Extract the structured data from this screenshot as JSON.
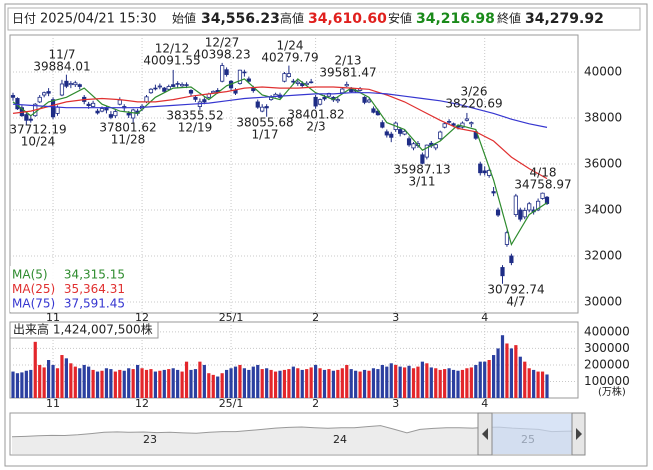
{
  "chart_data": {
    "type": "candlestick",
    "header": {
      "date_label": "日付",
      "date": "2025/04/21 15:30",
      "open_label": "始値",
      "open": "34,556.23",
      "high_label": "高値",
      "high": "34,610.60",
      "low_label": "安値",
      "low": "34,216.98",
      "close_label": "終値",
      "close": "34,279.92"
    },
    "categories": [
      null,
      null,
      null,
      null,
      null,
      null,
      null,
      null,
      null,
      "11",
      null,
      null,
      null,
      null,
      null,
      null,
      null,
      null,
      null,
      null,
      null,
      null,
      null,
      null,
      null,
      null,
      null,
      null,
      null,
      "12",
      null,
      null,
      null,
      null,
      null,
      null,
      null,
      null,
      null,
      null,
      null,
      null,
      null,
      null,
      null,
      null,
      null,
      null,
      null,
      "25/1",
      null,
      null,
      null,
      null,
      null,
      null,
      null,
      null,
      null,
      null,
      null,
      null,
      null,
      null,
      null,
      null,
      null,
      null,
      "2",
      null,
      null,
      null,
      null,
      null,
      null,
      null,
      null,
      null,
      null,
      null,
      null,
      null,
      null,
      null,
      null,
      null,
      "3",
      null,
      null,
      null,
      null,
      null,
      null,
      null,
      null,
      null,
      null,
      null,
      null,
      null,
      null,
      null,
      null,
      null,
      null,
      null,
      "4",
      null,
      null,
      null,
      null,
      null,
      null,
      null,
      null,
      null,
      null,
      null,
      null,
      null,
      null
    ],
    "ohlc": [
      [
        38980,
        39100,
        38750,
        38900
      ],
      [
        38850,
        38900,
        38350,
        38400
      ],
      [
        38450,
        38550,
        38050,
        38100
      ],
      [
        38150,
        38250,
        37712.19,
        37900
      ],
      [
        37950,
        38100,
        37800,
        37900
      ],
      [
        38100,
        38650,
        38050,
        38600
      ],
      [
        38700,
        39000,
        38650,
        38900
      ],
      [
        39000,
        39150,
        38900,
        39100
      ],
      [
        39150,
        39300,
        38950,
        39080
      ],
      [
        38800,
        38900,
        37950,
        38050
      ],
      [
        38200,
        38550,
        38100,
        38470
      ],
      [
        39000,
        39660,
        38950,
        39480
      ],
      [
        39600,
        39884.01,
        39300,
        39380
      ],
      [
        39450,
        39600,
        39300,
        39500
      ],
      [
        39450,
        39620,
        39350,
        39530
      ],
      [
        39450,
        39500,
        39250,
        39370
      ],
      [
        38900,
        39000,
        38600,
        38720
      ],
      [
        38600,
        38700,
        38400,
        38540
      ],
      [
        38500,
        38750,
        38450,
        38640
      ],
      [
        38300,
        38400,
        38150,
        38220
      ],
      [
        38300,
        38500,
        38250,
        38410
      ],
      [
        38450,
        38500,
        38200,
        38350
      ],
      [
        38150,
        38300,
        37950,
        38030
      ],
      [
        38100,
        38350,
        38000,
        38280
      ],
      [
        38600,
        38900,
        38550,
        38780
      ],
      [
        38500,
        38600,
        38300,
        38440
      ],
      [
        38200,
        38300,
        38000,
        38130
      ],
      [
        38000,
        38400,
        37801.62,
        38350
      ],
      [
        38300,
        38400,
        38100,
        38200
      ],
      [
        38400,
        38600,
        38300,
        38510
      ],
      [
        38700,
        39000,
        38650,
        38920
      ],
      [
        39100,
        39300,
        39050,
        39250
      ],
      [
        39300,
        39450,
        39200,
        39280
      ],
      [
        39350,
        39500,
        39250,
        39390
      ],
      [
        39300,
        39350,
        39100,
        39160
      ],
      [
        39250,
        39450,
        39200,
        39370
      ],
      [
        39450,
        40091.55,
        39350,
        39370
      ],
      [
        39500,
        39600,
        39300,
        39470
      ],
      [
        39400,
        39550,
        39350,
        39460
      ],
      [
        39450,
        39550,
        39300,
        39450
      ],
      [
        39200,
        39250,
        38950,
        39080
      ],
      [
        38900,
        39000,
        38700,
        38810
      ],
      [
        38500,
        38850,
        38355.52,
        38700
      ],
      [
        38800,
        38900,
        38600,
        38700
      ],
      [
        38900,
        39100,
        38850,
        39040
      ],
      [
        39100,
        39200,
        39050,
        39160
      ],
      [
        39200,
        39300,
        39050,
        39130
      ],
      [
        39600,
        40398.23,
        39550,
        40280
      ],
      [
        40100,
        40200,
        39800,
        39890
      ],
      [
        39600,
        39650,
        39200,
        39310
      ],
      [
        39200,
        39300,
        39000,
        39080
      ],
      [
        39500,
        40100,
        39450,
        40080
      ],
      [
        40000,
        40100,
        39800,
        39980
      ],
      [
        39700,
        39800,
        39500,
        39600
      ],
      [
        39300,
        39400,
        39100,
        39190
      ],
      [
        38700,
        38800,
        38400,
        38470
      ],
      [
        38300,
        38600,
        38250,
        38470
      ],
      [
        38500,
        38600,
        38055.68,
        38440
      ],
      [
        38800,
        39000,
        38750,
        38900
      ],
      [
        38950,
        39100,
        38900,
        39030
      ],
      [
        39000,
        39100,
        38850,
        38900
      ],
      [
        39600,
        40000,
        39550,
        39930
      ],
      [
        39800,
        40279.79,
        39750,
        39930
      ],
      [
        39600,
        39700,
        39450,
        39570
      ],
      [
        39500,
        39650,
        39400,
        39560
      ],
      [
        39500,
        39600,
        39300,
        39410
      ],
      [
        39450,
        39600,
        39400,
        39510
      ],
      [
        39550,
        39700,
        39500,
        39570
      ],
      [
        38900,
        39000,
        38401.82,
        38520
      ],
      [
        38600,
        38850,
        38550,
        38800
      ],
      [
        38900,
        39000,
        38750,
        38830
      ],
      [
        38950,
        39100,
        38900,
        39070
      ],
      [
        38900,
        38950,
        38700,
        38790
      ],
      [
        38750,
        38900,
        38650,
        38800
      ],
      [
        39100,
        39300,
        39050,
        39260
      ],
      [
        39400,
        39581.47,
        39350,
        39460
      ],
      [
        39300,
        39350,
        39100,
        39150
      ],
      [
        39200,
        39300,
        39100,
        39170
      ],
      [
        39200,
        39350,
        39150,
        39270
      ],
      [
        38900,
        38950,
        38600,
        38680
      ],
      [
        38700,
        38850,
        38650,
        38780
      ],
      [
        38400,
        38500,
        38200,
        38250
      ],
      [
        38300,
        38400,
        38100,
        38140
      ],
      [
        37800,
        37900,
        37550,
        37600
      ],
      [
        37400,
        37500,
        37150,
        37260
      ],
      [
        37300,
        37400,
        36950,
        37160
      ],
      [
        37500,
        37850,
        37400,
        37780
      ],
      [
        37500,
        37600,
        37200,
        37330
      ],
      [
        37300,
        37500,
        37250,
        37420
      ],
      [
        37100,
        37200,
        36750,
        36830
      ],
      [
        36700,
        36950,
        36600,
        36880
      ],
      [
        36800,
        37000,
        36700,
        36890
      ],
      [
        36400,
        36500,
        35987.13,
        36030
      ],
      [
        36300,
        36850,
        36200,
        36820
      ],
      [
        36900,
        37000,
        36700,
        36790
      ],
      [
        36700,
        36900,
        36600,
        36840
      ],
      [
        37100,
        37450,
        37050,
        37390
      ],
      [
        37600,
        37800,
        37550,
        37750
      ],
      [
        37850,
        37950,
        37700,
        37840
      ],
      [
        37750,
        37800,
        37600,
        37680
      ],
      [
        37650,
        37700,
        37500,
        37600
      ],
      [
        37600,
        37850,
        37550,
        37780
      ],
      [
        37900,
        38220.69,
        37850,
        37960
      ],
      [
        37750,
        37850,
        37600,
        37800
      ],
      [
        37400,
        37450,
        37050,
        37120
      ],
      [
        36000,
        36100,
        35500,
        35620
      ],
      [
        35700,
        35900,
        35500,
        35620
      ],
      [
        35500,
        35800,
        35400,
        35720
      ],
      [
        34800,
        35000,
        34600,
        34740
      ],
      [
        34000,
        34100,
        33700,
        33780
      ],
      [
        31500,
        31600,
        30792.74,
        31140
      ],
      [
        32500,
        33100,
        32400,
        33010
      ],
      [
        32000,
        32100,
        31600,
        31710
      ],
      [
        33800,
        34700,
        33700,
        34610
      ],
      [
        34000,
        34100,
        33500,
        33600
      ],
      [
        33700,
        34100,
        33600,
        33980
      ],
      [
        34000,
        34350,
        33900,
        34270
      ],
      [
        34000,
        34150,
        33800,
        33920
      ],
      [
        34000,
        34500,
        33950,
        34380
      ],
      [
        34500,
        34758.97,
        34450,
        34730
      ],
      [
        34556.23,
        34610.6,
        34216.98,
        34279.92
      ]
    ],
    "up_color": "#ffffff",
    "down_color": "#1f2d86",
    "candle_outline": "#1f2d86",
    "ylim": [
      29520,
      41610
    ],
    "yticks": [
      30000,
      32000,
      34000,
      36000,
      38000,
      40000
    ],
    "grid": true,
    "moving_averages": [
      {
        "name": "MA(5)",
        "last": "34,315.15",
        "color": "#2e8b2e",
        "x": [
          0,
          4,
          8,
          12,
          16,
          20,
          24,
          28,
          32,
          36,
          40,
          44,
          48,
          52,
          56,
          60,
          64,
          68,
          72,
          76,
          80,
          84,
          88,
          92,
          96,
          100,
          104,
          108,
          112,
          116,
          120
        ],
        "values": [
          38700,
          38100,
          38700,
          38900,
          39300,
          38600,
          38300,
          38200,
          38900,
          39300,
          39350,
          38800,
          39400,
          39700,
          39000,
          38800,
          39700,
          39100,
          38800,
          39300,
          38900,
          37800,
          37500,
          36600,
          37000,
          37700,
          37500,
          35300,
          32500,
          33800,
          34315.15
        ]
      },
      {
        "name": "MA(25)",
        "last": "35,364.31",
        "color": "#e03030",
        "x": [
          0,
          4,
          8,
          12,
          16,
          20,
          24,
          28,
          32,
          36,
          40,
          44,
          48,
          52,
          56,
          60,
          64,
          68,
          72,
          76,
          80,
          84,
          88,
          92,
          96,
          100,
          104,
          108,
          112,
          116,
          120
        ],
        "values": [
          38200,
          38300,
          38500,
          38700,
          38800,
          38850,
          38800,
          38700,
          38700,
          38800,
          38950,
          39050,
          39150,
          39300,
          39350,
          39300,
          39300,
          39350,
          39350,
          39300,
          39250,
          39000,
          38700,
          38300,
          37900,
          37550,
          37400,
          37000,
          36300,
          35800,
          35364.31
        ]
      },
      {
        "name": "MA(75)",
        "last": "37,591.45",
        "color": "#3636d0",
        "x": [
          0,
          4,
          8,
          12,
          16,
          20,
          24,
          28,
          32,
          36,
          40,
          44,
          48,
          52,
          56,
          60,
          64,
          68,
          72,
          76,
          80,
          84,
          88,
          92,
          96,
          100,
          104,
          108,
          112,
          116,
          120
        ],
        "values": [
          38600,
          38550,
          38500,
          38450,
          38450,
          38450,
          38450,
          38450,
          38500,
          38550,
          38600,
          38650,
          38750,
          38850,
          38900,
          38950,
          39000,
          39050,
          39050,
          39100,
          39100,
          39050,
          38950,
          38850,
          38750,
          38600,
          38400,
          38200,
          37950,
          37750,
          37591.45
        ]
      }
    ],
    "annotations": [
      {
        "lines": [
          "11/7",
          "39884.01"
        ]
      },
      {
        "lines": [
          "12/12",
          "40091.55"
        ]
      },
      {
        "lines": [
          "12/27",
          "40398.23"
        ]
      },
      {
        "lines": [
          "1/24",
          "40279.79"
        ]
      },
      {
        "lines": [
          "2/13",
          "39581.47"
        ]
      },
      {
        "lines": [
          "3/26",
          "38220.69"
        ]
      },
      {
        "lines": [
          "37712.19",
          "10/24"
        ]
      },
      {
        "lines": [
          "37801.62",
          "11/28"
        ]
      },
      {
        "lines": [
          "38355.52",
          "12/19"
        ]
      },
      {
        "lines": [
          "38055.68",
          "1/17"
        ]
      },
      {
        "lines": [
          "38401.82",
          "2/3"
        ]
      },
      {
        "lines": [
          "35987.13",
          "3/11"
        ]
      },
      {
        "lines": [
          "30792.74",
          "4/7"
        ]
      },
      {
        "lines": [
          "4/18",
          "34758.97"
        ]
      }
    ],
    "volume": {
      "title": "出来高 1,424,007,500株",
      "unit": "(万株)",
      "up_color": "#e3262b",
      "down_color": "#2b3fa0",
      "values": [
        160000,
        150000,
        155000,
        165000,
        170000,
        340000,
        200000,
        185000,
        230000,
        200000,
        180000,
        260000,
        240000,
        210000,
        190000,
        180000,
        200000,
        190000,
        170000,
        160000,
        165000,
        180000,
        175000,
        160000,
        170000,
        165000,
        180000,
        175000,
        200000,
        180000,
        170000,
        175000,
        160000,
        165000,
        170000,
        175000,
        180000,
        170000,
        160000,
        220000,
        170000,
        175000,
        220000,
        200000,
        150000,
        140000,
        130000,
        150000,
        170000,
        180000,
        190000,
        200000,
        180000,
        170000,
        190000,
        200000,
        175000,
        180000,
        170000,
        160000,
        165000,
        170000,
        175000,
        190000,
        180000,
        170000,
        175000,
        185000,
        200000,
        180000,
        170000,
        175000,
        165000,
        170000,
        180000,
        200000,
        175000,
        165000,
        160000,
        170000,
        165000,
        180000,
        175000,
        200000,
        190000,
        210000,
        200000,
        190000,
        185000,
        195000,
        180000,
        190000,
        220000,
        210000,
        185000,
        180000,
        170000,
        175000,
        180000,
        170000,
        165000,
        170000,
        180000,
        185000,
        200000,
        220000,
        220000,
        230000,
        260000,
        300000,
        380000,
        330000,
        300000,
        320000,
        250000,
        220000,
        180000,
        170000,
        160000,
        160000,
        142400
      ],
      "ylim": [
        0,
        460000
      ],
      "yticks": [
        100000,
        200000,
        300000,
        400000
      ]
    },
    "overview": {
      "labels": [
        "23",
        "24",
        "25"
      ],
      "ylim": [
        0,
        60000
      ],
      "values": [
        26000,
        26500,
        27500,
        28000,
        27800,
        29000,
        30500,
        32500,
        33000,
        32500,
        32800,
        32000,
        32500,
        31500,
        31000,
        32500,
        33500,
        33400,
        35000,
        36500,
        38500,
        39500,
        40000,
        39000,
        38200,
        38800,
        39000,
        40500,
        42000,
        37000,
        31500,
        36500,
        38000,
        38800,
        39000,
        38500,
        39500,
        39800,
        38500,
        37500,
        36500,
        33500,
        33800,
        34300
      ]
    }
  }
}
